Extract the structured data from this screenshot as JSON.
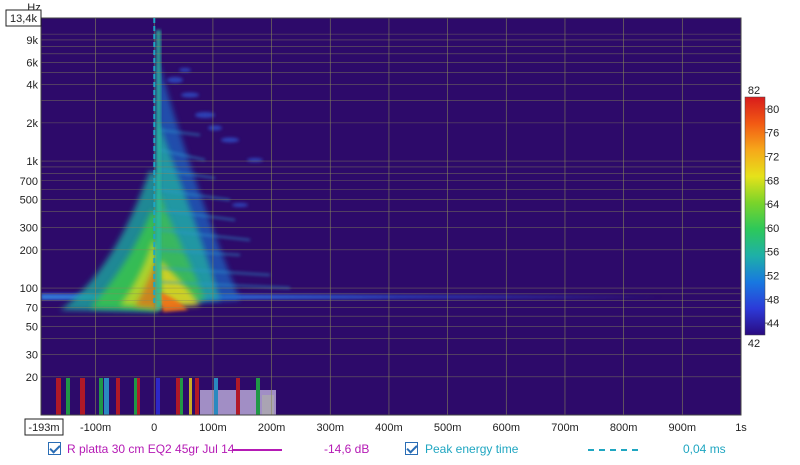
{
  "chart_data": {
    "type": "heatmap",
    "chart_kind": "spectrogram",
    "y_unit": "Hz",
    "y_scale": "log",
    "ylim": [
      10,
      13400
    ],
    "xlim": [
      -193,
      1000
    ],
    "x_ticks": [
      "-100m",
      "0",
      "100m",
      "200m",
      "300m",
      "400m",
      "500m",
      "600m",
      "700m",
      "800m",
      "900m",
      "1s"
    ],
    "x_tick_values": [
      -100,
      0,
      100,
      200,
      300,
      400,
      500,
      600,
      700,
      800,
      900,
      1000
    ],
    "y_ticks": [
      "9k",
      "6k",
      "4k",
      "2k",
      "1k",
      "700",
      "500",
      "300",
      "200",
      "100",
      "70",
      "50",
      "30",
      "20"
    ],
    "y_tick_values": [
      9000,
      6000,
      4000,
      2000,
      1000,
      700,
      500,
      300,
      200,
      100,
      70,
      50,
      30,
      20
    ],
    "y_top_box_label": "13,4k",
    "x_left_box_label": "-193m",
    "colorbar": {
      "min": 42,
      "max": 82,
      "min_label": "42",
      "max_label": "82",
      "ticks": [
        "80",
        "76",
        "72",
        "68",
        "64",
        "60",
        "56",
        "52",
        "48",
        "44"
      ],
      "tick_values": [
        80,
        76,
        72,
        68,
        64,
        60,
        56,
        52,
        48,
        44
      ],
      "colors": [
        "#2a0a80",
        "#2c3ad8",
        "#1878e0",
        "#1eb0a8",
        "#2dc85a",
        "#7ad42a",
        "#e6e21a",
        "#f6a81a",
        "#f25a14",
        "#d81c1c"
      ]
    },
    "peak_energy_time_ms": 0.04,
    "grid": true,
    "background_color": "#2d0a6a"
  },
  "legend": {
    "measurement_name": "R platta 30 cm EQ2 45gr Jul 14",
    "measurement_value": "-14,6 dB",
    "measurement_color": "#b51ab5",
    "peak_label": "Peak energy time",
    "peak_value": "0,04 ms",
    "peak_color": "#1fa6c1"
  }
}
